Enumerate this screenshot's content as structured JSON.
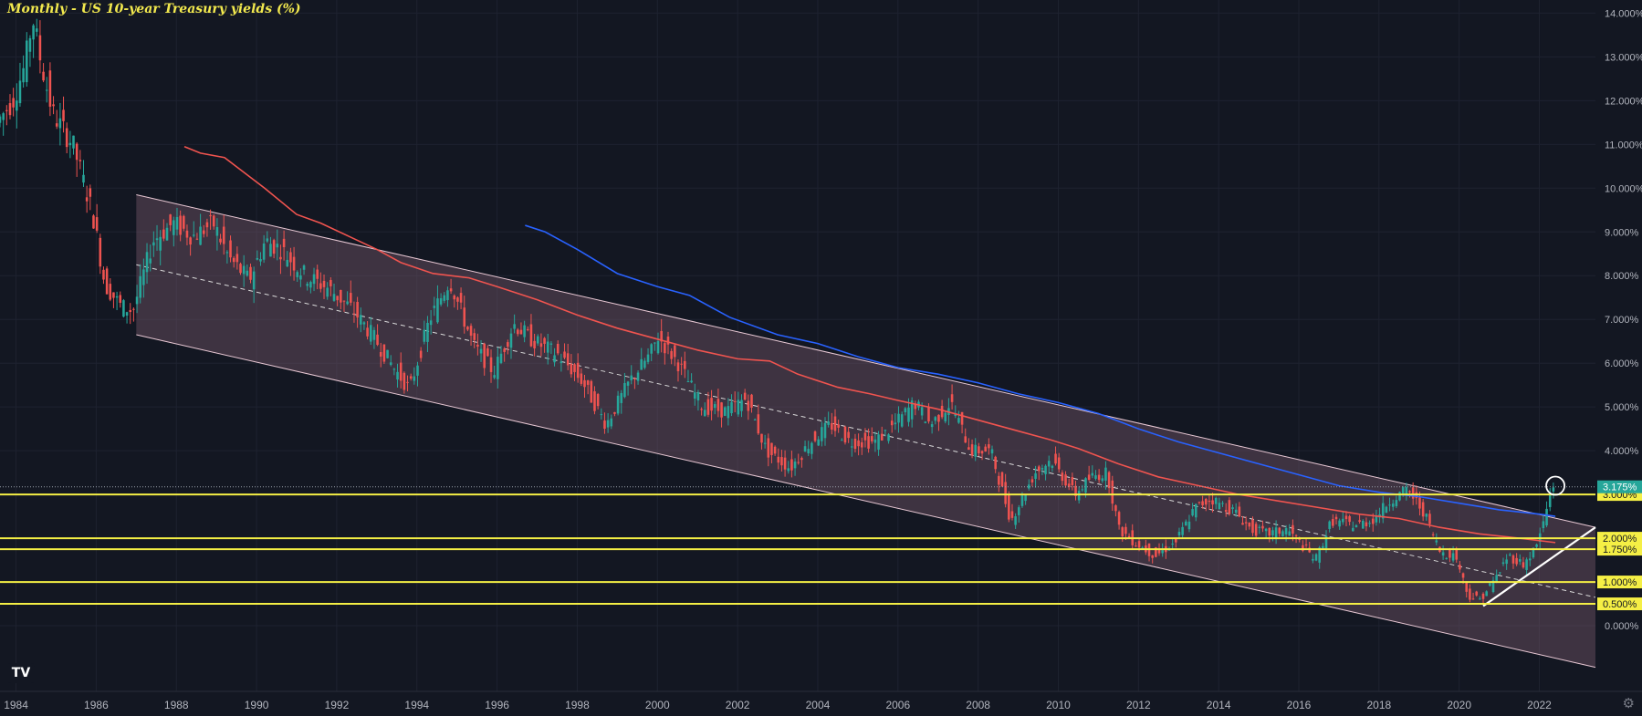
{
  "title": "Monthly - US 10-year Treasury yields (%)",
  "logo_text": "TV",
  "settings_icon": "gear-icon",
  "colors": {
    "background": "#131722",
    "grid": "#1e2230",
    "up": "#26a69a",
    "down": "#ef5350",
    "ma_red": "#f0544f",
    "ma_blue": "#2962ff",
    "channel_fill": "#7a5a6e",
    "channel_line": "#e8c8d4",
    "level_line": "#f5ef45",
    "axis_text": "#b2b5be",
    "price_tag": "#26a69a"
  },
  "chart_data": {
    "type": "candlestick",
    "title": "Monthly - US 10-year Treasury yields (%)",
    "x_ticks": [
      "1984",
      "1986",
      "1988",
      "1990",
      "1992",
      "1994",
      "1996",
      "1998",
      "2000",
      "2002",
      "2004",
      "2006",
      "2008",
      "2010",
      "2012",
      "2014",
      "2016",
      "2018",
      "2020",
      "2022"
    ],
    "y_ticks": [
      "14.000%",
      "13.000%",
      "12.000%",
      "11.000%",
      "10.000%",
      "9.000%",
      "8.000%",
      "7.000%",
      "6.000%",
      "5.000%",
      "4.000%",
      "0.000%"
    ],
    "xlim": [
      1983.6,
      2023.4
    ],
    "ylim": [
      -1.5,
      14.3
    ],
    "grid": true,
    "horizontal_levels": [
      {
        "value": 3.0,
        "label": "3.000%"
      },
      {
        "value": 2.0,
        "label": "2.000%"
      },
      {
        "value": 1.75,
        "label": "1.750%"
      },
      {
        "value": 1.0,
        "label": "1.000%"
      },
      {
        "value": 0.5,
        "label": "0.500%"
      }
    ],
    "current_price": {
      "value": 3.175,
      "label": "3.175%"
    },
    "channel": {
      "upper": [
        [
          1987.0,
          9.85
        ],
        [
          2023.4,
          2.25
        ]
      ],
      "lower": [
        [
          1987.0,
          6.65
        ],
        [
          2023.4,
          -0.95
        ]
      ],
      "mid": [
        [
          1987.0,
          8.25
        ],
        [
          2023.4,
          0.65
        ]
      ]
    },
    "uptrend_line": [
      [
        2020.6,
        0.45
      ],
      [
        2023.4,
        2.25
      ]
    ],
    "series": [
      {
        "name": "",
        "type": "ma",
        "color": "red",
        "points": [
          [
            1988.2,
            10.95
          ],
          [
            1988.6,
            10.8
          ],
          [
            1989.2,
            10.7
          ],
          [
            1990.2,
            10.0
          ],
          [
            1991.0,
            9.4
          ],
          [
            1991.6,
            9.2
          ],
          [
            1992.3,
            8.9
          ],
          [
            1993.0,
            8.6
          ],
          [
            1993.6,
            8.3
          ],
          [
            1994.4,
            8.05
          ],
          [
            1995.3,
            7.95
          ],
          [
            1996.0,
            7.75
          ],
          [
            1997.0,
            7.45
          ],
          [
            1998.0,
            7.1
          ],
          [
            1999.0,
            6.8
          ],
          [
            2000.0,
            6.55
          ],
          [
            2001.0,
            6.3
          ],
          [
            2002.0,
            6.1
          ],
          [
            2002.8,
            6.05
          ],
          [
            2003.5,
            5.75
          ],
          [
            2004.5,
            5.45
          ],
          [
            2005.3,
            5.3
          ],
          [
            2006.0,
            5.15
          ],
          [
            2007.0,
            4.95
          ],
          [
            2008.0,
            4.7
          ],
          [
            2009.0,
            4.45
          ],
          [
            2009.8,
            4.25
          ],
          [
            2010.5,
            4.05
          ],
          [
            2011.5,
            3.7
          ],
          [
            2012.5,
            3.4
          ],
          [
            2013.5,
            3.2
          ],
          [
            2014.5,
            3.0
          ],
          [
            2015.5,
            2.85
          ],
          [
            2016.5,
            2.7
          ],
          [
            2017.5,
            2.55
          ],
          [
            2018.5,
            2.45
          ],
          [
            2019.5,
            2.25
          ],
          [
            2020.5,
            2.1
          ],
          [
            2021.5,
            2.0
          ],
          [
            2022.4,
            1.9
          ]
        ]
      },
      {
        "name": "",
        "type": "ma",
        "color": "blue",
        "points": [
          [
            1996.7,
            9.15
          ],
          [
            1997.2,
            9.0
          ],
          [
            1998.0,
            8.6
          ],
          [
            1999.0,
            8.05
          ],
          [
            2000.0,
            7.75
          ],
          [
            2000.8,
            7.55
          ],
          [
            2001.8,
            7.05
          ],
          [
            2003.0,
            6.65
          ],
          [
            2004.0,
            6.45
          ],
          [
            2005.0,
            6.15
          ],
          [
            2006.0,
            5.9
          ],
          [
            2007.0,
            5.75
          ],
          [
            2008.0,
            5.55
          ],
          [
            2009.0,
            5.3
          ],
          [
            2010.0,
            5.1
          ],
          [
            2011.0,
            4.85
          ],
          [
            2012.0,
            4.5
          ],
          [
            2013.0,
            4.2
          ],
          [
            2014.0,
            3.95
          ],
          [
            2015.0,
            3.7
          ],
          [
            2016.0,
            3.45
          ],
          [
            2017.0,
            3.2
          ],
          [
            2018.0,
            3.05
          ],
          [
            2019.0,
            2.95
          ],
          [
            2020.0,
            2.8
          ],
          [
            2021.0,
            2.65
          ],
          [
            2022.0,
            2.55
          ],
          [
            2022.4,
            2.5
          ]
        ]
      }
    ],
    "price_anchors": [
      [
        1983.6,
        11.5
      ],
      [
        1984.0,
        12.0
      ],
      [
        1984.3,
        12.8
      ],
      [
        1984.5,
        13.9
      ],
      [
        1984.7,
        12.9
      ],
      [
        1985.0,
        11.7
      ],
      [
        1985.5,
        11.0
      ],
      [
        1986.0,
        9.4
      ],
      [
        1986.3,
        7.8
      ],
      [
        1986.7,
        7.3
      ],
      [
        1987.0,
        7.2
      ],
      [
        1987.5,
        8.8
      ],
      [
        1988.0,
        9.2
      ],
      [
        1988.5,
        8.9
      ],
      [
        1989.0,
        9.2
      ],
      [
        1989.4,
        8.4
      ],
      [
        1989.9,
        7.9
      ],
      [
        1990.3,
        8.8
      ],
      [
        1990.7,
        8.6
      ],
      [
        1991.3,
        8.0
      ],
      [
        1991.9,
        7.7
      ],
      [
        1992.5,
        7.2
      ],
      [
        1993.0,
        6.6
      ],
      [
        1993.5,
        5.9
      ],
      [
        1993.9,
        5.4
      ],
      [
        1994.4,
        7.0
      ],
      [
        1994.9,
        7.9
      ],
      [
        1995.5,
        6.4
      ],
      [
        1996.0,
        5.8
      ],
      [
        1996.5,
        6.9
      ],
      [
        1997.0,
        6.5
      ],
      [
        1997.6,
        6.2
      ],
      [
        1998.2,
        5.6
      ],
      [
        1998.8,
        4.6
      ],
      [
        1999.4,
        5.6
      ],
      [
        1999.9,
        6.2
      ],
      [
        2000.1,
        6.6
      ],
      [
        2000.6,
        6.0
      ],
      [
        2001.2,
        5.0
      ],
      [
        2001.8,
        4.9
      ],
      [
        2002.3,
        5.2
      ],
      [
        2002.8,
        4.0
      ],
      [
        2003.4,
        3.6
      ],
      [
        2003.9,
        4.2
      ],
      [
        2004.4,
        4.6
      ],
      [
        2004.9,
        4.2
      ],
      [
        2005.5,
        4.2
      ],
      [
        2005.9,
        4.5
      ],
      [
        2006.5,
        5.1
      ],
      [
        2006.9,
        4.6
      ],
      [
        2007.4,
        5.1
      ],
      [
        2007.9,
        4.0
      ],
      [
        2008.4,
        4.0
      ],
      [
        2008.9,
        2.4
      ],
      [
        2009.5,
        3.5
      ],
      [
        2009.9,
        3.8
      ],
      [
        2010.5,
        3.0
      ],
      [
        2010.9,
        3.4
      ],
      [
        2011.3,
        3.5
      ],
      [
        2011.6,
        2.2
      ],
      [
        2012.0,
        1.9
      ],
      [
        2012.5,
        1.6
      ],
      [
        2013.0,
        1.9
      ],
      [
        2013.5,
        2.7
      ],
      [
        2013.9,
        2.9
      ],
      [
        2014.5,
        2.6
      ],
      [
        2014.9,
        2.2
      ],
      [
        2015.3,
        2.1
      ],
      [
        2015.8,
        2.2
      ],
      [
        2016.5,
        1.5
      ],
      [
        2016.9,
        2.4
      ],
      [
        2017.5,
        2.3
      ],
      [
        2017.9,
        2.4
      ],
      [
        2018.4,
        2.9
      ],
      [
        2018.8,
        3.1
      ],
      [
        2019.2,
        2.6
      ],
      [
        2019.6,
        1.7
      ],
      [
        2020.0,
        1.6
      ],
      [
        2020.3,
        0.7
      ],
      [
        2020.6,
        0.6
      ],
      [
        2021.0,
        1.1
      ],
      [
        2021.3,
        1.6
      ],
      [
        2021.7,
        1.4
      ],
      [
        2022.0,
        1.8
      ],
      [
        2022.2,
        2.4
      ],
      [
        2022.4,
        3.2
      ]
    ]
  }
}
